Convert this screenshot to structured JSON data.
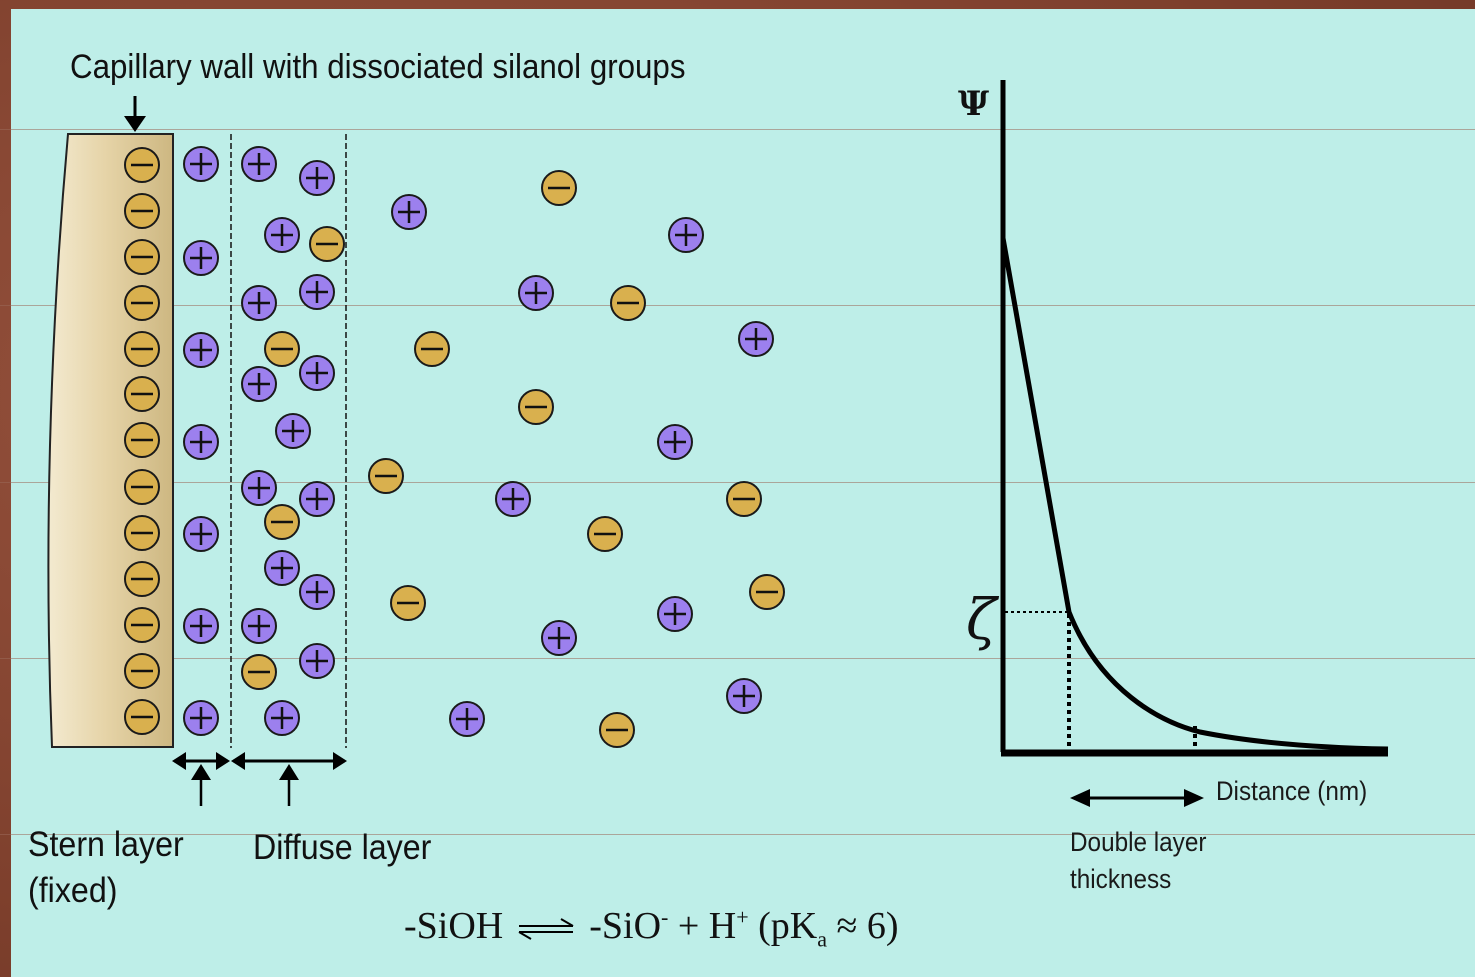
{
  "caption": "Capillary wall with dissociated silanol groups",
  "stern_label": [
    "Stern layer",
    "(fixed)"
  ],
  "diffuse_label": "Diffuse layer",
  "graph": {
    "y_symbol": "Ψ",
    "zeta_symbol": "ζ",
    "x_label": "Distance (nm)",
    "thickness_label": [
      "Double layer",
      "thickness"
    ]
  },
  "equation": {
    "left": "-SiOH",
    "right_a": "-SiO",
    "right_a_sup": "-",
    "right_b": " + H",
    "right_b_sup": "+",
    "paren_open": " (pK",
    "sub": "a",
    "approx": " ≈  6)"
  },
  "charges": {
    "positive": "+",
    "negative": "−"
  },
  "colors": {
    "background": "#beeee8",
    "frame": "#8a4a36",
    "positive_ion": "#9c80ee",
    "negative_ion": "#d9b04e",
    "wall": "#e8d7b0"
  }
}
